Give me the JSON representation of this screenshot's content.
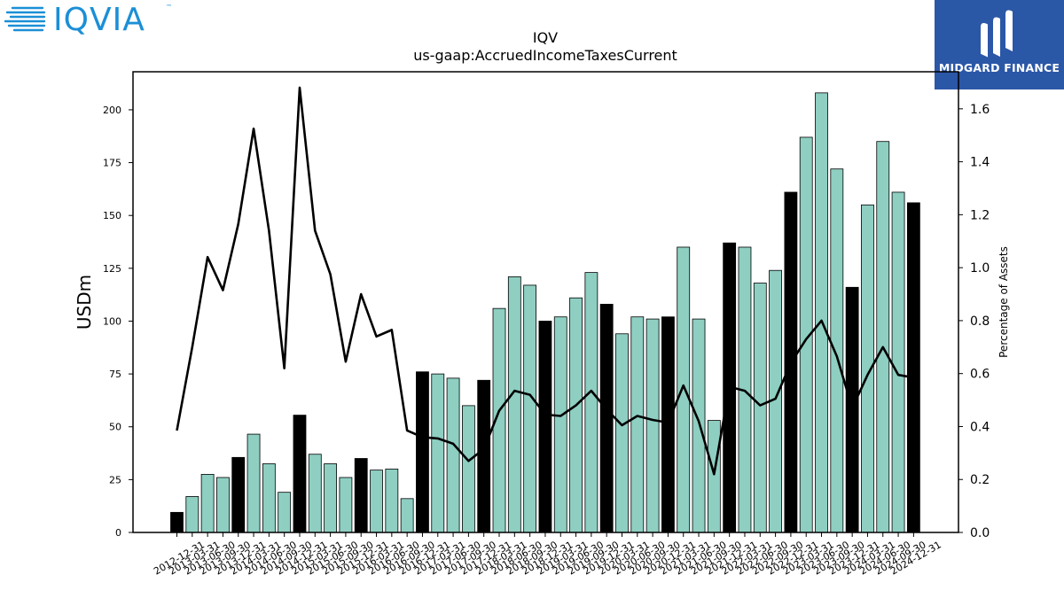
{
  "brand": {
    "left_logo_text": "IQVIA",
    "left_logo_tm": "™",
    "right_logo_text": "MIDGARD FINANCE",
    "right_logo_color": "#2b57a7"
  },
  "chart_data": {
    "type": "bar",
    "title": "IQV",
    "subtitle": "us-gaap:AccruedIncomeTaxesCurrent",
    "ylabel": "USDm",
    "y2label": "Percentage of Assets",
    "ylim": [
      0,
      218
    ],
    "y2lim": [
      0,
      1.74
    ],
    "yticks": [
      0,
      25,
      50,
      75,
      100,
      125,
      150,
      175,
      200
    ],
    "y2ticks": [
      "0.0",
      "0.2",
      "0.4",
      "0.6",
      "0.8",
      "1.0",
      "1.2",
      "1.4",
      "1.6"
    ],
    "bar_color": "#8ecfc2",
    "highlight_color": "#000000",
    "line_color": "#000000",
    "categories": [
      "2012-12-31",
      "2013-03-31",
      "2013-06-30",
      "2013-09-30",
      "2013-12-31",
      "2014-03-31",
      "2014-06-30",
      "2014-09-30",
      "2014-12-31",
      "2015-03-31",
      "2015-06-30",
      "2015-09-30",
      "2015-12-31",
      "2016-03-31",
      "2016-06-30",
      "2016-09-30",
      "2016-12-31",
      "2017-03-31",
      "2017-06-30",
      "2017-09-30",
      "2017-12-31",
      "2018-03-31",
      "2018-06-30",
      "2018-09-30",
      "2018-12-31",
      "2019-03-31",
      "2019-06-30",
      "2019-09-30",
      "2019-12-31",
      "2020-03-31",
      "2020-06-30",
      "2020-09-30",
      "2020-12-31",
      "2021-03-31",
      "2021-06-30",
      "2021-09-30",
      "2021-12-31",
      "2022-03-31",
      "2022-06-30",
      "2022-09-30",
      "2022-12-31",
      "2023-03-31",
      "2023-06-30",
      "2023-09-30",
      "2023-12-31",
      "2024-03-31",
      "2024-06-30",
      "2024-09-30",
      "2024-12-31"
    ],
    "values": [
      9.5,
      17,
      27.5,
      26,
      35.5,
      46.5,
      32.5,
      19,
      55.5,
      37,
      32.5,
      26,
      35,
      29.5,
      30,
      16,
      76,
      75,
      73,
      60,
      72,
      106,
      121,
      117,
      100,
      102,
      111,
      123,
      108,
      94,
      102,
      101,
      102,
      135,
      101,
      53,
      137,
      135,
      118,
      124,
      161,
      187,
      208,
      172,
      116,
      155,
      185,
      161,
      156
    ],
    "highlighted": [
      true,
      false,
      false,
      false,
      true,
      false,
      false,
      false,
      true,
      false,
      false,
      false,
      true,
      false,
      false,
      false,
      true,
      false,
      false,
      false,
      true,
      false,
      false,
      false,
      true,
      false,
      false,
      false,
      true,
      false,
      false,
      false,
      true,
      false,
      false,
      false,
      true,
      false,
      false,
      false,
      true,
      false,
      false,
      false,
      true,
      false,
      false,
      false,
      true
    ],
    "pct_of_assets": [
      0.385,
      0.7,
      1.04,
      0.915,
      1.165,
      1.525,
      1.14,
      0.62,
      1.68,
      1.14,
      0.975,
      0.645,
      0.9,
      0.74,
      0.765,
      0.385,
      0.36,
      0.355,
      0.335,
      0.27,
      0.315,
      0.46,
      0.535,
      0.52,
      0.445,
      0.44,
      0.48,
      0.535,
      0.465,
      0.405,
      0.44,
      0.425,
      0.415,
      0.555,
      0.42,
      0.22,
      0.55,
      0.535,
      0.48,
      0.505,
      0.64,
      0.73,
      0.8,
      0.665,
      0.47,
      0.595,
      0.7,
      0.595,
      0.585
    ]
  }
}
